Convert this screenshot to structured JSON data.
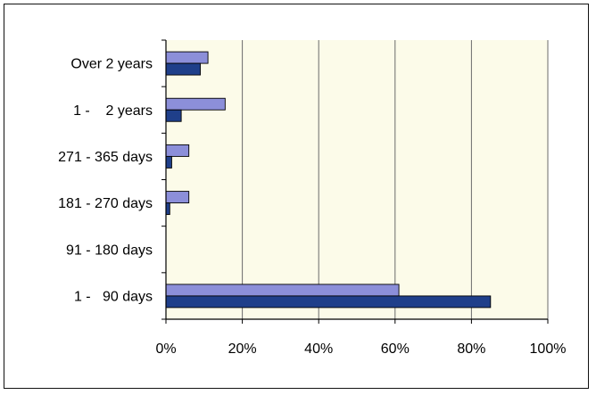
{
  "chart_data": {
    "type": "bar",
    "orientation": "horizontal",
    "title": "",
    "xlabel": "",
    "ylabel": "",
    "categories": [
      "Over 2 years",
      "1 -    2 years",
      "271 - 365 days",
      "181 - 270 days",
      "91 - 180 days",
      "1 -   90 days"
    ],
    "series": [
      {
        "values": [
          11,
          15.5,
          6,
          6,
          0,
          61
        ],
        "color": "#8c8fd9"
      },
      {
        "values": [
          9,
          4,
          1.5,
          1,
          0,
          85
        ],
        "color": "#1f3f8a"
      }
    ],
    "xlim": [
      0,
      100
    ],
    "x_ticks": [
      0,
      20,
      40,
      60,
      80,
      100
    ],
    "x_tick_labels": [
      "0%",
      "20%",
      "40%",
      "60%",
      "80%",
      "100%"
    ],
    "grid": "vertical",
    "legend": "none",
    "plot_background": "#fcfbe9"
  }
}
